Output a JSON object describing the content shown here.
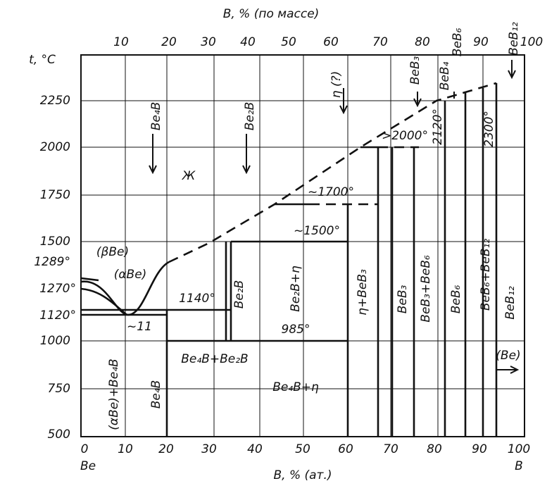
{
  "top_axis": {
    "title": "B, % (по массе)",
    "ticks": [
      "10",
      "20",
      "30",
      "40",
      "50",
      "60",
      "70",
      "80",
      "90",
      "100"
    ]
  },
  "left_axis": {
    "title": "t, °C",
    "ticks": [
      "2250",
      "2000",
      "1750",
      "1500",
      "1289°",
      "1270°",
      "1120°",
      "1000",
      "750",
      "500"
    ]
  },
  "bottom_axis": {
    "title": "B, % (ат.)",
    "ticks": [
      "0",
      "10",
      "20",
      "30",
      "40",
      "50",
      "60",
      "70",
      "80",
      "90",
      "100"
    ],
    "left_end": "Be",
    "right_end": "B"
  },
  "compounds": [
    "Be₄B",
    "Be₂B",
    "η (?)",
    "BeB₃",
    "BeB₄",
    "BeB₆",
    "BeB₁₂"
  ],
  "temperatures": [
    "~1700°",
    "~1500°",
    "1140°",
    "985°",
    ">2000°",
    "2120°",
    "2300°",
    "~11"
  ],
  "regions": [
    "Ж",
    "(βBe)",
    "(αBe)",
    "(αBe)+Be₄B",
    "Be₄B",
    "Be₄B+Be₂B",
    "Be₄B+η",
    "Be₂B",
    "Be₂B+η",
    "η+BeB₃",
    "BeB₃",
    "BeB₃+BeB₆",
    "BeB₆",
    "BeB₆+BeB₁₂",
    "BeB₁₂",
    "(Be)"
  ]
}
